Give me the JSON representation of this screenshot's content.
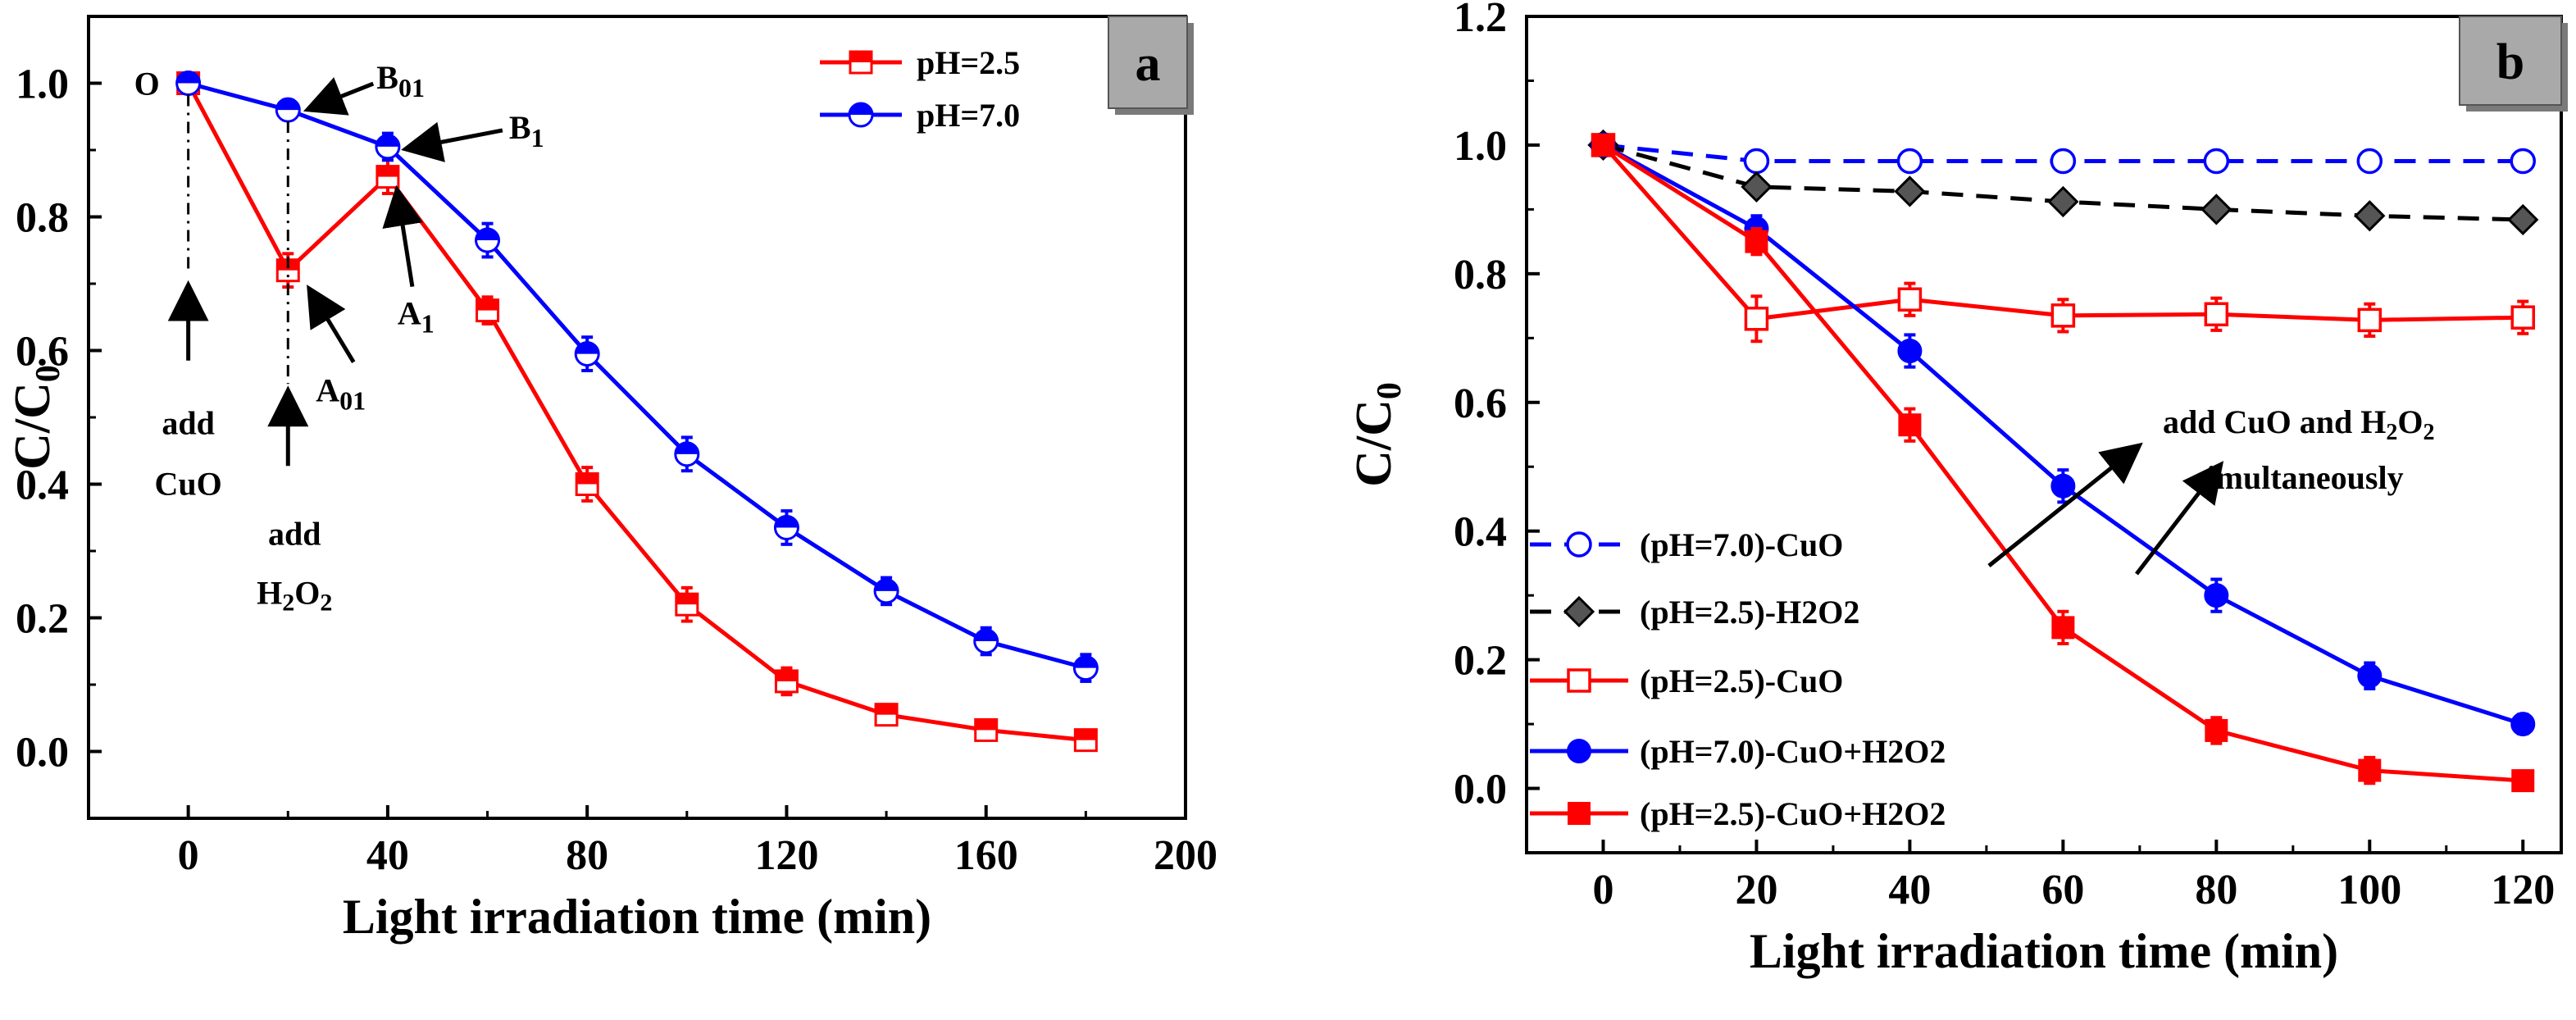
{
  "chart_data": [
    {
      "panel": "a",
      "type": "line",
      "panel_label": "a",
      "xlabel": "Light irradiation time (min)",
      "ylabel": "C/C0",
      "ylabel_main": "C/C",
      "ylabel_sub": "0",
      "xlim": [
        -20,
        200
      ],
      "ylim": [
        -0.1,
        1.1
      ],
      "xticks": [
        0,
        40,
        80,
        120,
        160,
        200
      ],
      "yticks": [
        0.0,
        0.2,
        0.4,
        0.6,
        0.8,
        1.0
      ],
      "series": [
        {
          "name": "pH=2.5",
          "color": "#ff0000",
          "marker": "square-half",
          "x": [
            0,
            20,
            40,
            60,
            80,
            100,
            120,
            140,
            160,
            180
          ],
          "y": [
            1.0,
            0.72,
            0.86,
            0.66,
            0.4,
            0.22,
            0.105,
            0.055,
            0.032,
            0.017
          ],
          "err": [
            0.01,
            0.025,
            0.025,
            0.02,
            0.025,
            0.025,
            0.02,
            0.015,
            0.015,
            0.01
          ]
        },
        {
          "name": "pH=7.0",
          "color": "#0000ff",
          "marker": "circle-half",
          "x": [
            0,
            20,
            40,
            60,
            80,
            100,
            120,
            140,
            160,
            180
          ],
          "y": [
            1.0,
            0.96,
            0.905,
            0.765,
            0.595,
            0.445,
            0.335,
            0.24,
            0.165,
            0.125
          ],
          "err": [
            0.01,
            0.015,
            0.02,
            0.025,
            0.025,
            0.025,
            0.025,
            0.02,
            0.02,
            0.02
          ]
        }
      ],
      "annotations": {
        "O": "O",
        "B01_main": "B",
        "B01_sub": "01",
        "B1_main": "B",
        "B1_sub": "1",
        "A01_main": "A",
        "A01_sub": "01",
        "A1_main": "A",
        "A1_sub": "1",
        "add1": "add",
        "cuo": "CuO",
        "add2": "add",
        "h2o2_h": "H",
        "h2o2_2a": "2",
        "h2o2_o": "O",
        "h2o2_2b": "2"
      }
    },
    {
      "panel": "b",
      "type": "line",
      "panel_label": "b",
      "xlabel": "Light irradiation time (min)",
      "ylabel": "C/C0",
      "ylabel_main": "C/C",
      "ylabel_sub": "0",
      "xlim": [
        -10,
        125
      ],
      "ylim": [
        -0.1,
        1.2
      ],
      "xticks": [
        0,
        20,
        40,
        60,
        80,
        100,
        120
      ],
      "yticks": [
        0.0,
        0.2,
        0.4,
        0.6,
        0.8,
        1.0,
        1.2
      ],
      "series": [
        {
          "name": "(pH=7.0)-CuO",
          "color": "#0000ff",
          "marker": "open-circle",
          "dash": true,
          "x": [
            0,
            20,
            40,
            60,
            80,
            100,
            120
          ],
          "y": [
            1.0,
            0.975,
            0.975,
            0.975,
            0.975,
            0.975,
            0.975
          ],
          "err": [
            0,
            0,
            0,
            0,
            0,
            0,
            0
          ]
        },
        {
          "name": "(pH=2.5)-H2O2",
          "color": "#000000",
          "marker": "diamond",
          "dash": true,
          "x": [
            0,
            20,
            40,
            60,
            80,
            100,
            120
          ],
          "y": [
            1.0,
            0.935,
            0.928,
            0.912,
            0.9,
            0.89,
            0.884
          ],
          "err": [
            0,
            0,
            0,
            0,
            0,
            0,
            0
          ]
        },
        {
          "name": "(pH=2.5)-CuO",
          "color": "#ff0000",
          "marker": "open-square",
          "dash": false,
          "x": [
            0,
            20,
            40,
            60,
            80,
            100,
            120
          ],
          "y": [
            1.0,
            0.73,
            0.76,
            0.735,
            0.737,
            0.728,
            0.732
          ],
          "err": [
            0,
            0.035,
            0.025,
            0.025,
            0.025,
            0.025,
            0.025
          ]
        },
        {
          "name": "(pH=7.0)-CuO+H2O2",
          "color": "#0000ff",
          "marker": "circle",
          "dash": false,
          "x": [
            0,
            20,
            40,
            60,
            80,
            100,
            120
          ],
          "y": [
            1.0,
            0.87,
            0.68,
            0.47,
            0.3,
            0.175,
            0.1
          ],
          "err": [
            0,
            0.02,
            0.025,
            0.025,
            0.025,
            0.02,
            0.015
          ]
        },
        {
          "name": "(pH=2.5)-CuO+H2O2",
          "color": "#ff0000",
          "marker": "square",
          "dash": false,
          "x": [
            0,
            20,
            40,
            60,
            80,
            100,
            120
          ],
          "y": [
            1.0,
            0.85,
            0.565,
            0.25,
            0.09,
            0.028,
            0.012
          ],
          "err": [
            0,
            0.02,
            0.025,
            0.025,
            0.02,
            0.02,
            0.015
          ]
        }
      ],
      "annotations": {
        "line1_pre": "add CuO and H",
        "line1_sub1": "2",
        "line1_o": "O",
        "line1_sub2": "2",
        "line2": "simultaneously"
      }
    }
  ]
}
